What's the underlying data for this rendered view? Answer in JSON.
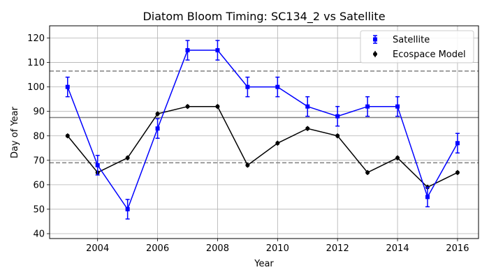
{
  "chart_data": {
    "type": "line",
    "title": "Diatom Bloom Timing: SC134_2 vs Satellite",
    "xlabel": "Year",
    "ylabel": "Day of Year",
    "xlim": [
      2002.4,
      2016.7
    ],
    "ylim": [
      38,
      125
    ],
    "xticks": [
      2004,
      2006,
      2008,
      2010,
      2012,
      2014,
      2016
    ],
    "yticks": [
      40,
      50,
      60,
      70,
      80,
      90,
      100,
      110,
      120
    ],
    "grid": true,
    "legend_position": "top-right",
    "series": [
      {
        "name": "Satellite",
        "color": "#0000ff",
        "marker": "square",
        "x": [
          2003,
          2004,
          2005,
          2006,
          2007,
          2008,
          2009,
          2010,
          2011,
          2012,
          2013,
          2014,
          2015,
          2016
        ],
        "y": [
          100,
          68,
          50,
          83,
          115,
          115,
          100,
          100,
          92,
          88,
          92,
          92,
          55,
          77
        ],
        "err": [
          4,
          4,
          4,
          4,
          4,
          4,
          4,
          4,
          4,
          4,
          4,
          4,
          4,
          4
        ]
      },
      {
        "name": "Ecospace Model",
        "color": "#000000",
        "marker": "circle",
        "x": [
          2003,
          2004,
          2005,
          2006,
          2007,
          2008,
          2009,
          2010,
          2011,
          2012,
          2013,
          2014,
          2015,
          2016
        ],
        "y": [
          80,
          65,
          71,
          89,
          92,
          92,
          68,
          77,
          83,
          80,
          65,
          71,
          59,
          65
        ],
        "err": [
          1,
          1,
          1,
          1,
          1,
          1,
          1,
          1,
          1,
          1,
          1,
          1,
          1,
          1
        ]
      }
    ],
    "reference_lines": [
      {
        "y": 87.5,
        "style": "solid",
        "color": "#808080"
      },
      {
        "y": 106.5,
        "style": "dashed",
        "color": "#808080"
      },
      {
        "y": 69,
        "style": "dashed",
        "color": "#808080"
      }
    ]
  }
}
